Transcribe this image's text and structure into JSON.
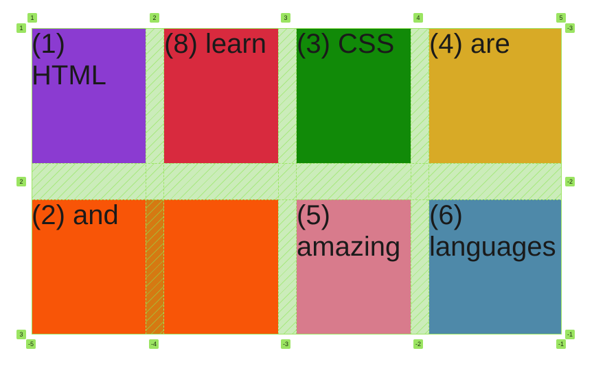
{
  "grid": {
    "items": [
      {
        "id": "c1",
        "label": "(1) HTML",
        "color": "#8b3bd1"
      },
      {
        "id": "c8",
        "label": "(8) learn",
        "color": "#d82a3e"
      },
      {
        "id": "c3",
        "label": "(3) CSS",
        "color": "#118a08"
      },
      {
        "id": "c4",
        "label": "(4) are",
        "color": "#d8aa26"
      },
      {
        "id": "c2",
        "label": "(2) and",
        "color": "#f85507"
      },
      {
        "id": "c5",
        "label": "(5) amazing",
        "color": "#d87b8c"
      },
      {
        "id": "c6",
        "label": "(6) languages",
        "color": "#4e89a9"
      }
    ]
  },
  "overlay": {
    "top_column_numbers": [
      "1",
      "2",
      "3",
      "4",
      "5"
    ],
    "bottom_column_numbers": [
      "-5",
      "-4",
      "-3",
      "-2",
      "-1"
    ],
    "left_row_numbers": [
      "1",
      "2",
      "3"
    ],
    "right_row_numbers": [
      "-3",
      "-2",
      "-1"
    ],
    "accent_color": "#9be462"
  }
}
